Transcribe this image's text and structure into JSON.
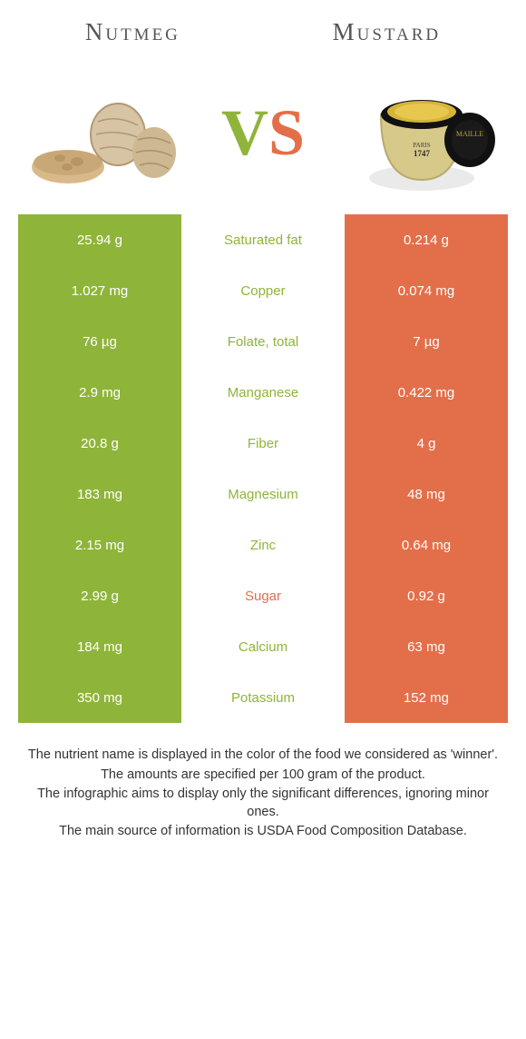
{
  "colors": {
    "left_bg": "#8fb43a",
    "right_bg": "#e36f4a",
    "left_text": "#8fb43a",
    "right_text": "#e36f4a",
    "vs_v": "#8fb43a",
    "vs_s": "#e36f4a"
  },
  "left": {
    "name": "Nutmeg"
  },
  "right": {
    "name": "Mustard"
  },
  "vs": {
    "v": "V",
    "s": "S"
  },
  "rows": [
    {
      "left": "25.94 g",
      "label": "Saturated fat",
      "right": "0.214 g",
      "winner": "left"
    },
    {
      "left": "1.027 mg",
      "label": "Copper",
      "right": "0.074 mg",
      "winner": "left"
    },
    {
      "left": "76 µg",
      "label": "Folate, total",
      "right": "7 µg",
      "winner": "left"
    },
    {
      "left": "2.9 mg",
      "label": "Manganese",
      "right": "0.422 mg",
      "winner": "left"
    },
    {
      "left": "20.8 g",
      "label": "Fiber",
      "right": "4 g",
      "winner": "left"
    },
    {
      "left": "183 mg",
      "label": "Magnesium",
      "right": "48 mg",
      "winner": "left"
    },
    {
      "left": "2.15 mg",
      "label": "Zinc",
      "right": "0.64 mg",
      "winner": "left"
    },
    {
      "left": "2.99 g",
      "label": "Sugar",
      "right": "0.92 g",
      "winner": "right"
    },
    {
      "left": "184 mg",
      "label": "Calcium",
      "right": "63 mg",
      "winner": "left"
    },
    {
      "left": "350 mg",
      "label": "Potassium",
      "right": "152 mg",
      "winner": "left"
    }
  ],
  "footnotes": [
    "The nutrient name is displayed in the color of the food we considered as 'winner'.",
    "The amounts are specified per 100 gram of the product.",
    "The infographic aims to display only the significant differences, ignoring minor ones.",
    "The main source of information is USDA Food Composition Database."
  ]
}
